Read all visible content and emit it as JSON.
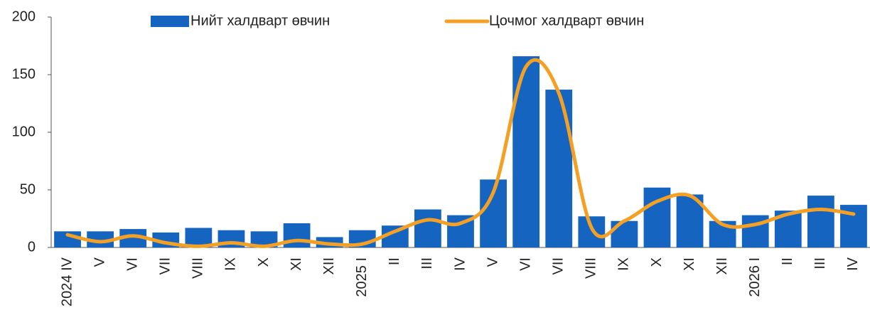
{
  "chart_data": {
    "type": "bar_line",
    "categories": [
      "2024 IV",
      "V",
      "VI",
      "VII",
      "VIII",
      "IX",
      "X",
      "XI",
      "XII",
      "2025 I",
      "II",
      "III",
      "IV",
      "V",
      "VI",
      "VII",
      "VIII",
      "IX",
      "X",
      "XI",
      "XII",
      "2026 I",
      "II",
      "III",
      "IV"
    ],
    "series": [
      {
        "name": "Нийт халдварт өвчин",
        "type": "bar",
        "color": "#1565c0",
        "values": [
          14,
          14,
          16,
          13,
          17,
          15,
          14,
          21,
          9,
          15,
          19,
          33,
          28,
          59,
          166,
          137,
          27,
          23,
          52,
          46,
          23,
          28,
          32,
          45,
          37
        ]
      },
      {
        "name": "Цочмог халдварт өвчин",
        "type": "line",
        "color": "#f4a025",
        "values": [
          11,
          5,
          10,
          4,
          1,
          4,
          1,
          6,
          3,
          3,
          14,
          24,
          21,
          48,
          157,
          134,
          17,
          23,
          40,
          45,
          20,
          20,
          29,
          33,
          29
        ]
      }
    ],
    "ylim": [
      0,
      200
    ],
    "yticks": [
      0,
      50,
      100,
      150,
      200
    ],
    "legend": "top"
  }
}
